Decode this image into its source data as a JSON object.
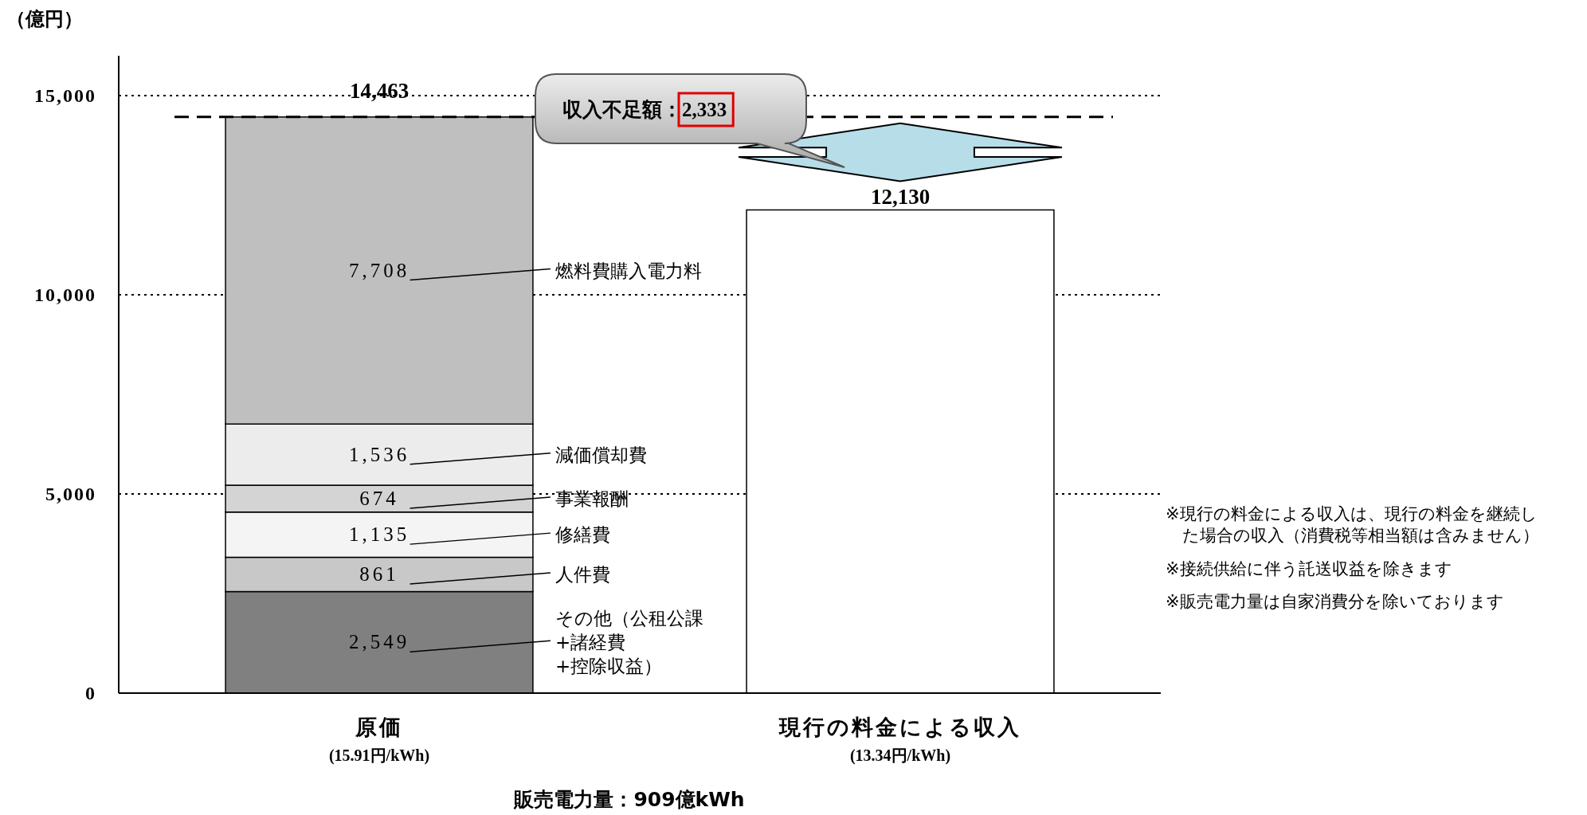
{
  "chart_data": {
    "type": "bar",
    "stacked": true,
    "ylabel": "（億円）",
    "categories": [
      "原価\n(15.91円/kWh)",
      "現行の料金による収入\n(13.34円/kWh)"
    ],
    "series": [
      {
        "name": "その他（公租公課+諸経費+控除収益）",
        "color": "#808080",
        "values": [
          2549,
          null
        ],
        "value_labels": [
          "2,549",
          null
        ]
      },
      {
        "name": "人件費",
        "color": "#c8c8c8",
        "values": [
          861,
          null
        ],
        "value_labels": [
          "861",
          null
        ]
      },
      {
        "name": "修繕費",
        "color": "#f4f4f4",
        "values": [
          1135,
          null
        ],
        "value_labels": [
          "1,135",
          null
        ]
      },
      {
        "name": "事業報酬",
        "color": "#d4d4d4",
        "values": [
          674,
          null
        ],
        "value_labels": [
          "674",
          null
        ]
      },
      {
        "name": "減価償却費",
        "color": "#ececec",
        "values": [
          1536,
          null
        ],
        "value_labels": [
          "1,536",
          null
        ]
      },
      {
        "name": "燃料費購入電力料",
        "color": "#bfbfbf",
        "values": [
          7708,
          null
        ],
        "value_labels": [
          "7,708",
          null
        ]
      },
      {
        "color": "#ffffff",
        "values": [
          null,
          12130
        ]
      }
    ],
    "totals": [
      "14,463",
      "12,130"
    ],
    "ylim": [
      0,
      16000
    ],
    "yticks": [
      0,
      {
        "value": 5000,
        "label": "5,000"
      },
      {
        "value": 10000,
        "label": "10,000"
      },
      {
        "value": 15000,
        "label": "15,000"
      }
    ],
    "grid": "y",
    "ref_lines": [
      {
        "axis": "y",
        "value": 14463,
        "line_style": "dashed"
      }
    ],
    "annotations": [
      "収入不足額：2,333",
      "※現行の料金による収入は、現行の料金を継続した場合の収入（消費税等相当額は含みません）",
      "※接続供給に伴う託送収益を除きます",
      "※販売電力量は自家消費分を除いております",
      "販売電力量：909億kWh"
    ]
  }
}
